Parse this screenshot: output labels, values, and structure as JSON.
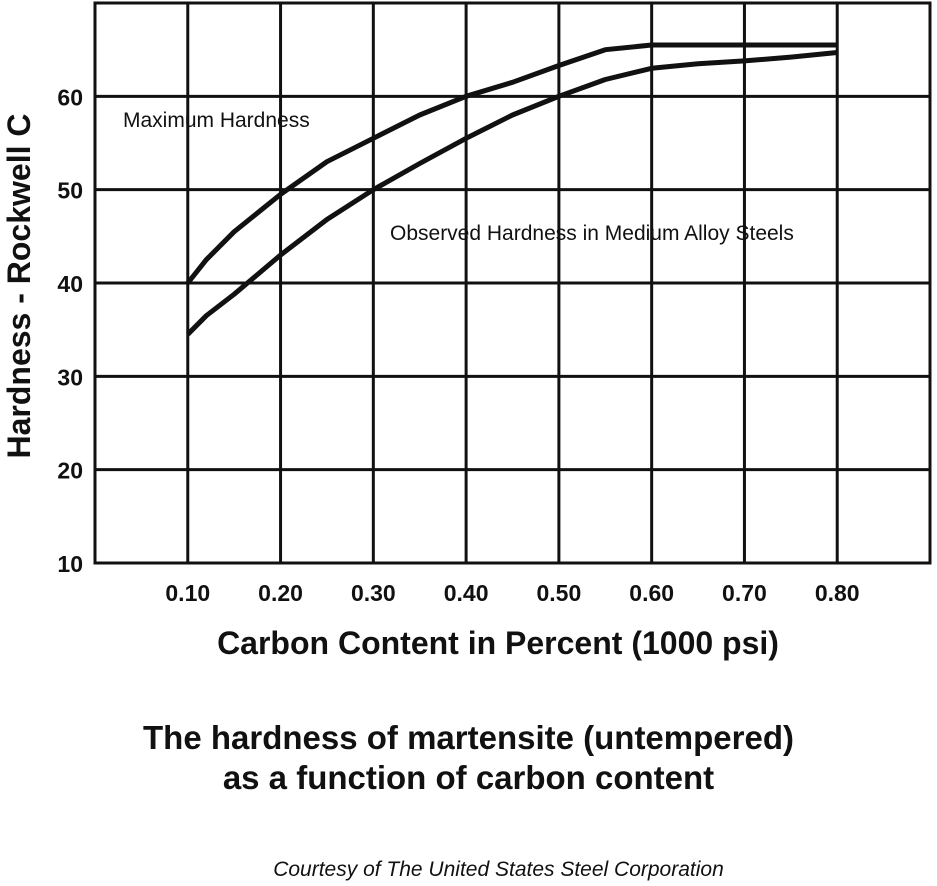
{
  "chart_data": {
    "type": "line",
    "xlabel": "Carbon Content in Percent (1000 psi)",
    "ylabel": "Hardness - Rockwell C",
    "x_ticks": [
      "0.10",
      "0.20",
      "0.30",
      "0.40",
      "0.50",
      "0.60",
      "0.70",
      "0.80"
    ],
    "y_ticks": [
      "10",
      "20",
      "30",
      "40",
      "50",
      "60"
    ],
    "xlim": [
      0.0,
      0.9
    ],
    "ylim": [
      10,
      70
    ],
    "grid": true,
    "series": [
      {
        "name": "Maximum Hardness",
        "x": [
          0.1,
          0.12,
          0.15,
          0.2,
          0.25,
          0.3,
          0.35,
          0.4,
          0.45,
          0.5,
          0.55,
          0.6,
          0.65,
          0.7,
          0.75,
          0.8
        ],
        "y": [
          40.0,
          42.5,
          45.5,
          49.5,
          53.0,
          55.5,
          58.0,
          60.0,
          61.5,
          63.3,
          65.0,
          65.5,
          65.5,
          65.5,
          65.5,
          65.5
        ]
      },
      {
        "name": "Observed Hardness in Medium Alloy Steels",
        "x": [
          0.1,
          0.12,
          0.15,
          0.2,
          0.25,
          0.3,
          0.35,
          0.4,
          0.45,
          0.5,
          0.55,
          0.6,
          0.65,
          0.7,
          0.75,
          0.8
        ],
        "y": [
          34.5,
          36.5,
          38.8,
          43.0,
          46.8,
          50.0,
          52.8,
          55.5,
          58.0,
          60.0,
          61.8,
          63.0,
          63.5,
          63.8,
          64.2,
          64.7
        ]
      }
    ]
  },
  "caption": {
    "line1": "The hardness of martensite (untempered)",
    "line2": "as a function of carbon content"
  },
  "credit": "Courtesy of The United States Steel Corporation"
}
